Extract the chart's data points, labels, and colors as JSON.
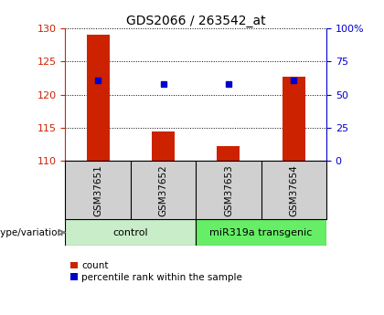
{
  "title": "GDS2066 / 263542_at",
  "samples": [
    "GSM37651",
    "GSM37652",
    "GSM37653",
    "GSM37654"
  ],
  "bar_values": [
    129.0,
    114.4,
    112.2,
    122.7
  ],
  "bar_bottom": 110,
  "percentile_values": [
    122.2,
    121.6,
    121.6,
    122.2
  ],
  "ylim_left": [
    110,
    130
  ],
  "yticks_left": [
    110,
    115,
    120,
    125,
    130
  ],
  "ylim_right": [
    0,
    100
  ],
  "yticks_right": [
    0,
    25,
    50,
    75,
    100
  ],
  "yticklabels_right": [
    "0",
    "25",
    "50",
    "75",
    "100%"
  ],
  "bar_color": "#cc2200",
  "percentile_color": "#0000cc",
  "left_tick_color": "#cc2200",
  "right_tick_color": "#0000cc",
  "groups": [
    {
      "label": "control",
      "indices": [
        0,
        1
      ],
      "color": "#c8edc8"
    },
    {
      "label": "miR319a transgenic",
      "indices": [
        2,
        3
      ],
      "color": "#66ee66"
    }
  ],
  "grid_linestyle": "dotted",
  "grid_color": "#000000",
  "legend_count_label": "count",
  "legend_percentile_label": "percentile rank within the sample",
  "genotype_label": "genotype/variation",
  "bg_color": "#ffffff",
  "plot_bg_color": "#ffffff",
  "label_area_color": "#d0d0d0",
  "bar_width": 0.35,
  "n_samples": 4
}
